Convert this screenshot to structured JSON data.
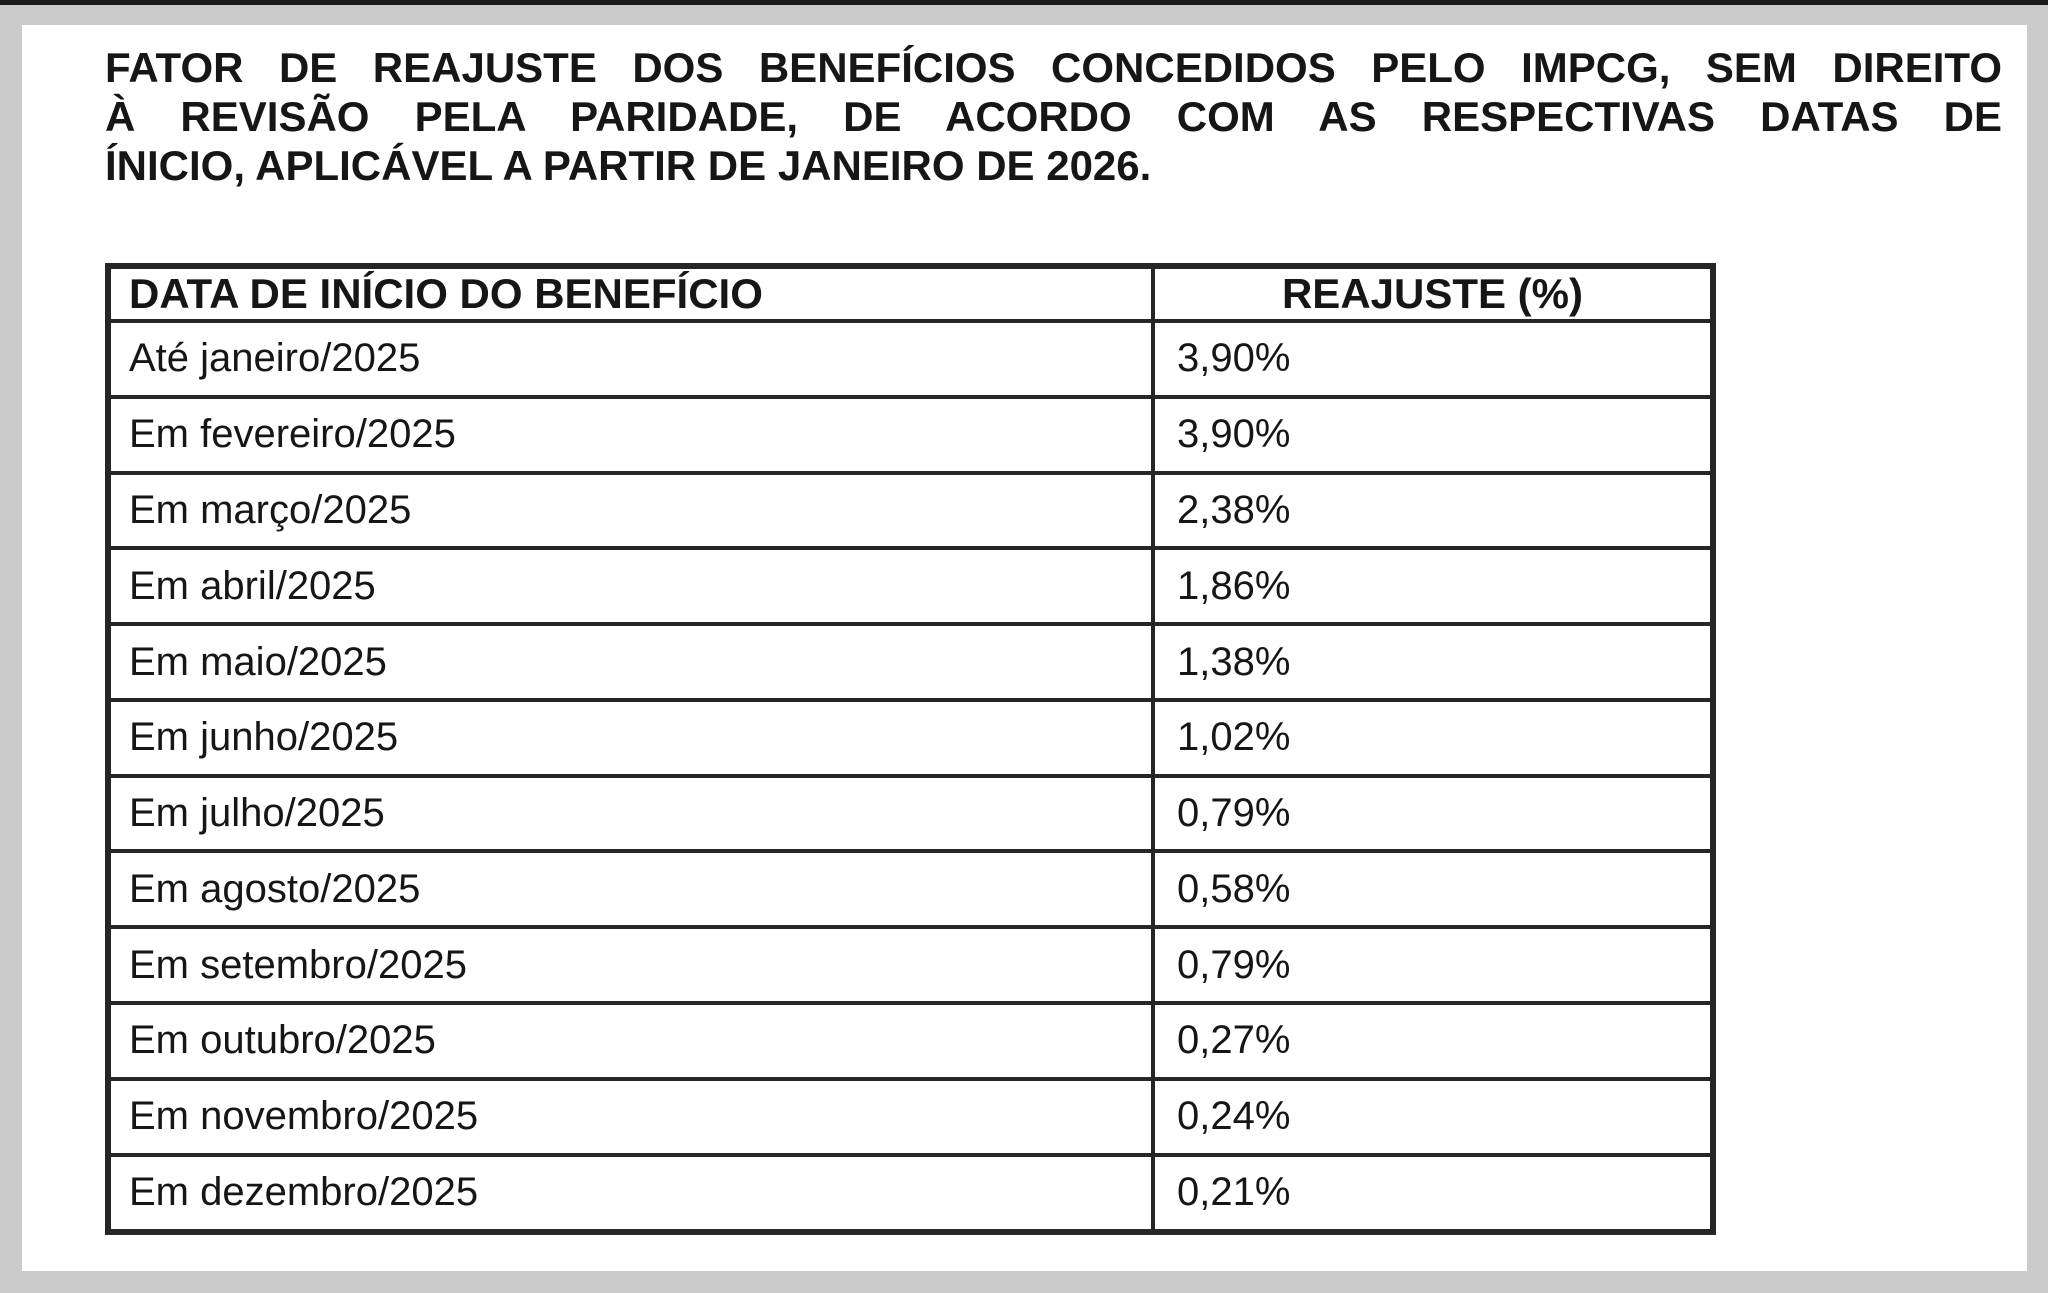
{
  "colors": {
    "frame_gray": "#cbcbcb",
    "page_white": "#ffffff",
    "border_dark": "#262626",
    "top_strip": "#1b1b1b",
    "text_color": "#161616"
  },
  "document": {
    "title_lines": [
      "FATOR DE REAJUSTE DOS BENEFÍCIOS CONCEDIDOS PELO IMPCG, SEM DIREITO",
      "À REVISÃO PELA PARIDADE, DE ACORDO COM AS RESPECTIVAS DATAS DE",
      "ÍNICIO, APLICÁVEL A PARTIR DE JANEIRO DE 2026."
    ]
  },
  "table": {
    "headers": [
      "DATA DE INÍCIO DO BENEFÍCIO",
      "REAJUSTE (%)"
    ],
    "rows": [
      {
        "date": "Até janeiro/2025",
        "value": "3,90%"
      },
      {
        "date": "Em fevereiro/2025",
        "value": "3,90%"
      },
      {
        "date": "Em março/2025",
        "value": "2,38%"
      },
      {
        "date": "Em abril/2025",
        "value": "1,86%"
      },
      {
        "date": "Em maio/2025",
        "value": "1,38%"
      },
      {
        "date": "Em junho/2025",
        "value": "1,02%"
      },
      {
        "date": "Em julho/2025",
        "value": "0,79%"
      },
      {
        "date": "Em agosto/2025",
        "value": "0,58%"
      },
      {
        "date": "Em setembro/2025",
        "value": "0,79%"
      },
      {
        "date": "Em outubro/2025",
        "value": "0,27%"
      },
      {
        "date": "Em novembro/2025",
        "value": "0,24%"
      },
      {
        "date": "Em dezembro/2025",
        "value": "0,21%"
      }
    ]
  }
}
